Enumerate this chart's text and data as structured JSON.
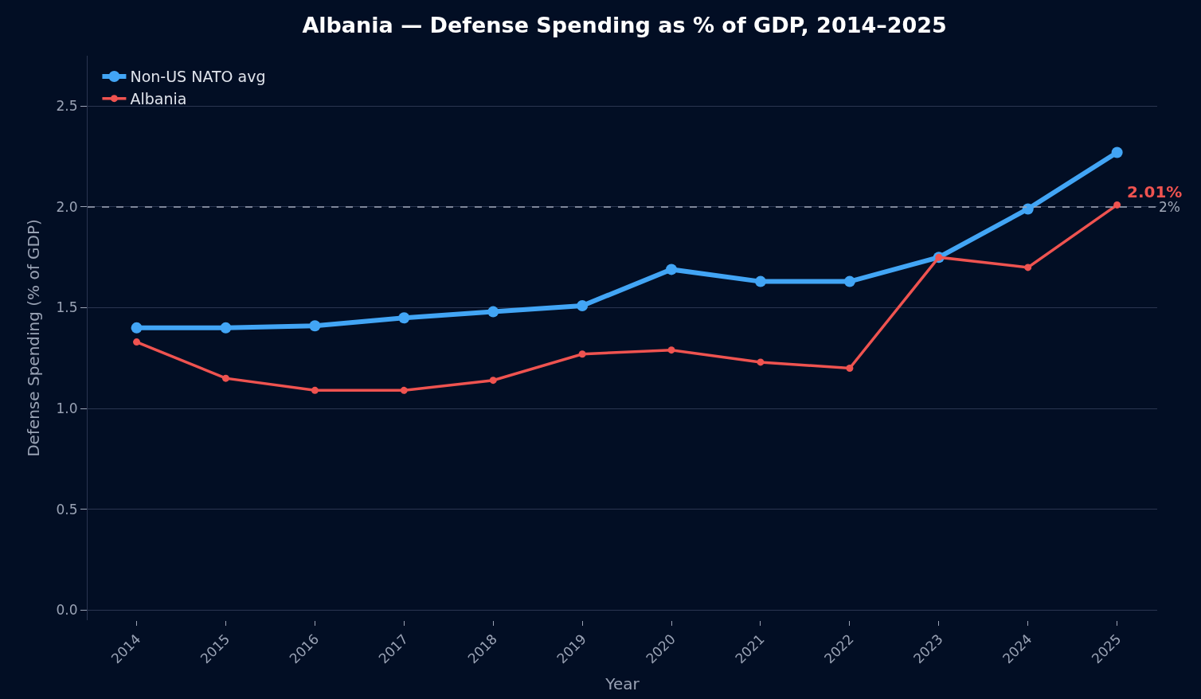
{
  "chart_data": {
    "type": "line",
    "title": "Albania — Defense Spending as % of GDP, 2014–2025",
    "xlabel": "Year",
    "ylabel": "Defense Spending (% of GDP)",
    "categories": [
      "2014",
      "2015",
      "2016",
      "2017",
      "2018",
      "2019",
      "2020",
      "2021",
      "2022",
      "2023",
      "2024",
      "2025"
    ],
    "series": [
      {
        "name": "Non-US NATO avg",
        "color": "#42a5f5",
        "values": [
          1.4,
          1.4,
          1.41,
          1.45,
          1.48,
          1.51,
          1.69,
          1.63,
          1.63,
          1.75,
          1.99,
          2.27
        ]
      },
      {
        "name": "Albania",
        "color": "#ef5350",
        "values": [
          1.33,
          1.15,
          1.09,
          1.09,
          1.14,
          1.27,
          1.29,
          1.23,
          1.2,
          1.75,
          1.7,
          2.01
        ]
      }
    ],
    "ylim": [
      -0.05,
      2.75
    ],
    "yticks": [
      {
        "value": 0,
        "label": "0.0"
      },
      {
        "value": 0.5,
        "label": "0.5"
      },
      {
        "value": 1,
        "label": "1.0"
      },
      {
        "value": 1.5,
        "label": "1.5"
      },
      {
        "value": 2,
        "label": "2.0"
      },
      {
        "value": 2.5,
        "label": "2.5"
      }
    ],
    "ref_lines": [
      {
        "axis": "y",
        "value": 2.0,
        "label": "2%",
        "color": "#a0a8b8",
        "line_style": "dashed"
      }
    ],
    "annotations": [
      {
        "text": "2.01%",
        "x": "2025",
        "y": 2.01
      }
    ],
    "grid": "y",
    "legend": "top left",
    "marker": "circle",
    "line_style": "solid"
  }
}
